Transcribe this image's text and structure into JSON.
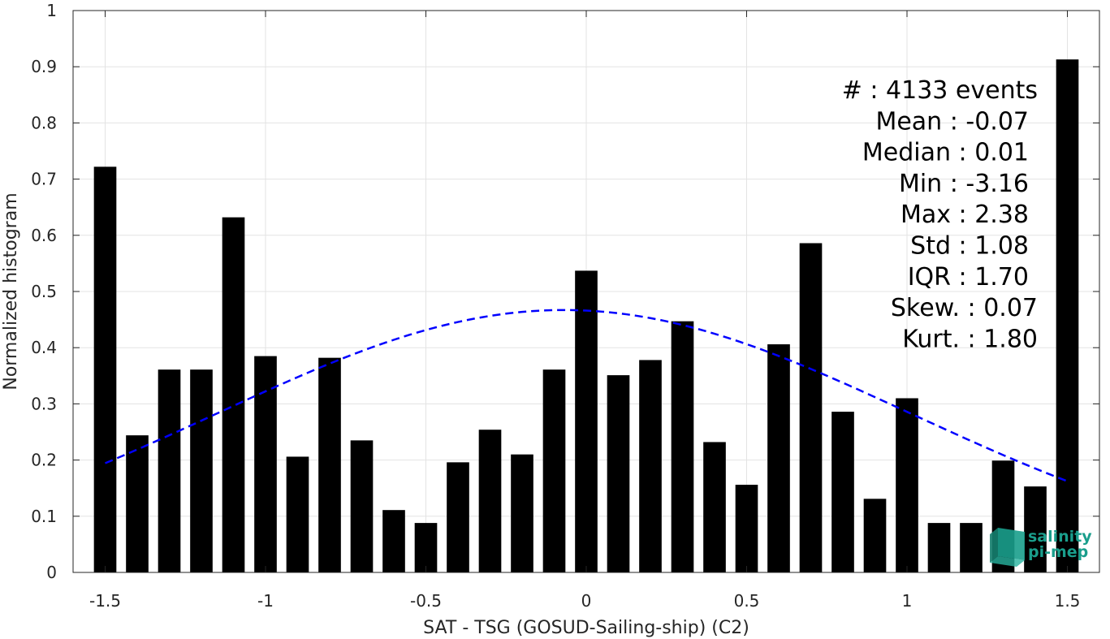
{
  "chart_data": {
    "type": "bar",
    "xlabel": "SAT - TSG (GOSUD-Sailing-ship) (C2)",
    "ylabel": "Normalized histogram",
    "xlim": [
      -1.6,
      1.6
    ],
    "ylim": [
      0,
      1
    ],
    "grid": true,
    "bar_width": 0.07,
    "x_ticks": [
      -1.5,
      -1,
      -0.5,
      0,
      0.5,
      1,
      1.5
    ],
    "x_tick_labels": [
      "-1.5",
      "-1",
      "-0.5",
      "0",
      "0.5",
      "1",
      "1.5"
    ],
    "y_ticks": [
      0,
      0.1,
      0.2,
      0.3,
      0.4,
      0.5,
      0.6,
      0.7,
      0.8,
      0.9,
      1
    ],
    "y_tick_labels": [
      "0",
      "0.1",
      "0.2",
      "0.3",
      "0.4",
      "0.5",
      "0.6",
      "0.7",
      "0.8",
      "0.9",
      "1"
    ],
    "bars": {
      "x": [
        -1.5,
        -1.4,
        -1.3,
        -1.2,
        -1.1,
        -1.0,
        -0.9,
        -0.8,
        -0.7,
        -0.6,
        -0.5,
        -0.4,
        -0.3,
        -0.2,
        -0.1,
        0.0,
        0.1,
        0.2,
        0.3,
        0.4,
        0.5,
        0.6,
        0.7,
        0.8,
        0.9,
        1.0,
        1.1,
        1.2,
        1.3,
        1.4,
        1.5
      ],
      "values": [
        0.722,
        0.244,
        0.361,
        0.361,
        0.632,
        0.385,
        0.206,
        0.382,
        0.235,
        0.111,
        0.088,
        0.196,
        0.254,
        0.21,
        0.361,
        0.537,
        0.351,
        0.378,
        0.447,
        0.232,
        0.156,
        0.406,
        0.586,
        0.286,
        0.131,
        0.31,
        0.088,
        0.088,
        0.199,
        0.153,
        0.913
      ],
      "color": "#000000"
    },
    "fit_curve": {
      "type": "gaussian",
      "mean": -0.07,
      "std": 1.08,
      "peak": 0.467,
      "x_range": [
        -1.5,
        1.5
      ],
      "color": "#0000ff",
      "style": "dashed"
    },
    "annotation": {
      "lines": [
        "#  : 4133 events",
        "Mean : -0.07",
        "Median : 0.01",
        "Min : -3.16",
        "Max : 2.38",
        "Std : 1.08",
        "IQR : 1.70",
        "Skew. : 0.07",
        "Kurt. : 1.80"
      ],
      "placement": "top-right"
    }
  },
  "logo": {
    "line1": "salinity",
    "line2": "pi-mep",
    "color": "#1a9e8c"
  }
}
